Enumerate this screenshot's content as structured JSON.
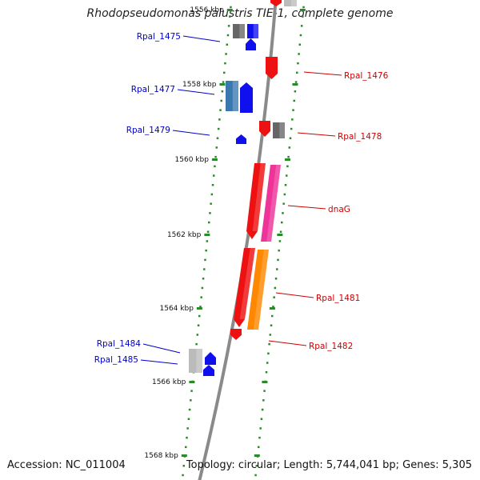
{
  "title": "Rhodopseudomonas palustris TIE-1, complete genome",
  "footer": {
    "accession": "Accession: NC_011004",
    "summary": "Topology: circular; Length: 5,744,041 bp; Genes: 5,305"
  },
  "colors": {
    "backbone": "#8a8a8a",
    "tick": "#2a8a2a",
    "forward_label": "#0000cc",
    "reverse_label": "#cc0000",
    "gene_blue": "#1010ee",
    "gene_steelblue": "#3a78b0",
    "gene_red": "#ee1111",
    "gene_gray": "#666666",
    "gene_lightgray": "#bbbbbb",
    "gene_pink": "#ee3399",
    "gene_orange": "#ff8800"
  },
  "kbp_labels": [
    "1556 kbp",
    "1558 kbp",
    "1560 kbp",
    "1562 kbp",
    "1564 kbp",
    "1566 kbp",
    "1568 kbp"
  ],
  "labels": [
    {
      "name": "Rpal_1475",
      "strand": "forward"
    },
    {
      "name": "Rpal_1477",
      "strand": "forward"
    },
    {
      "name": "Rpal_1479",
      "strand": "forward"
    },
    {
      "name": "Rpal_1484",
      "strand": "forward"
    },
    {
      "name": "Rpal_1485",
      "strand": "forward"
    },
    {
      "name": "Rpal_1476",
      "strand": "reverse"
    },
    {
      "name": "Rpal_1478",
      "strand": "reverse"
    },
    {
      "name": "dnaG",
      "strand": "reverse"
    },
    {
      "name": "Rpal_1481",
      "strand": "reverse"
    },
    {
      "name": "Rpal_1482",
      "strand": "reverse"
    }
  ]
}
